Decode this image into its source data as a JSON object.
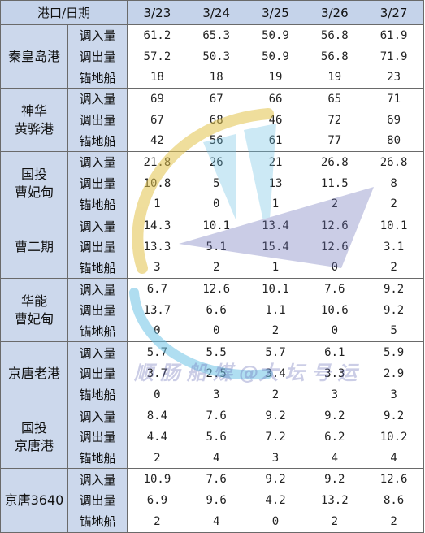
{
  "header": {
    "corner": "港口/日期",
    "dates": [
      "3/23",
      "3/24",
      "3/25",
      "3/26",
      "3/27"
    ]
  },
  "metrics": [
    "调入量",
    "调出量",
    "锚地船"
  ],
  "ports": [
    {
      "name_lines": [
        "秦皇岛港"
      ],
      "rows": [
        [
          "61.2",
          "65.3",
          "50.9",
          "56.8",
          "61.9"
        ],
        [
          "57.2",
          "50.3",
          "50.9",
          "56.8",
          "71.9"
        ],
        [
          "18",
          "18",
          "19",
          "19",
          "23"
        ]
      ]
    },
    {
      "name_lines": [
        "神华",
        "黄骅港"
      ],
      "rows": [
        [
          "69",
          "67",
          "66",
          "65",
          "71"
        ],
        [
          "67",
          "68",
          "46",
          "72",
          "69"
        ],
        [
          "42",
          "56",
          "61",
          "77",
          "80"
        ]
      ]
    },
    {
      "name_lines": [
        "国投",
        "曹妃甸"
      ],
      "rows": [
        [
          "21.8",
          "26",
          "21",
          "26.8",
          "26.8"
        ],
        [
          "10.8",
          "5",
          "13",
          "11.5",
          "8"
        ],
        [
          "1",
          "0",
          "1",
          "2",
          "2"
        ]
      ]
    },
    {
      "name_lines": [
        "曹二期"
      ],
      "rows": [
        [
          "14.3",
          "10.1",
          "13.4",
          "12.6",
          "10.1"
        ],
        [
          "13.3",
          "5.1",
          "15.4",
          "12.6",
          "3.1"
        ],
        [
          "3",
          "2",
          "1",
          "0",
          "2"
        ]
      ]
    },
    {
      "name_lines": [
        "华能",
        "曹妃甸"
      ],
      "rows": [
        [
          "6.7",
          "12.6",
          "10.1",
          "7.6",
          "9.2"
        ],
        [
          "13.7",
          "6.6",
          "1.1",
          "10.6",
          "9.2"
        ],
        [
          "0",
          "0",
          "2",
          "0",
          "5"
        ]
      ]
    },
    {
      "name_lines": [
        "京唐老港"
      ],
      "rows": [
        [
          "5.7",
          "5.5",
          "5.7",
          "6.1",
          "5.9"
        ],
        [
          "3.7",
          "2.5",
          "3.4",
          "3.3",
          "2.9"
        ],
        [
          "0",
          "3",
          "2",
          "3",
          "3"
        ]
      ]
    },
    {
      "name_lines": [
        "国投",
        "京唐港"
      ],
      "rows": [
        [
          "8.4",
          "7.6",
          "9.2",
          "9.2",
          "9.2"
        ],
        [
          "4.4",
          "5.6",
          "7.2",
          "6.2",
          "10.2"
        ],
        [
          "2",
          "4",
          "3",
          "4",
          "4"
        ]
      ]
    },
    {
      "name_lines": [
        "京唐3640"
      ],
      "rows": [
        [
          "10.9",
          "7.6",
          "9.2",
          "9.2",
          "12.6"
        ],
        [
          "6.9",
          "9.6",
          "4.2",
          "13.2",
          "8.6"
        ],
        [
          "2",
          "4",
          "0",
          "2",
          "2"
        ]
      ]
    }
  ],
  "watermark": {
    "text": "顺 肠 船 煤 @大 坛 号 运"
  }
}
